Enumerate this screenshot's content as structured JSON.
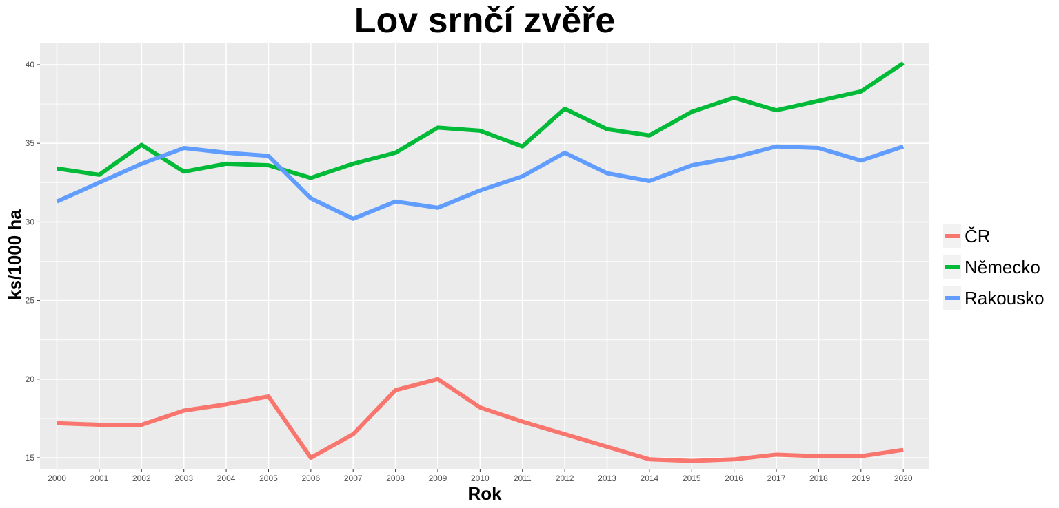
{
  "chart_data": {
    "type": "line",
    "title": "Lov srnčí zvěře",
    "xlabel": "Rok",
    "ylabel": "ks/1000 ha",
    "x": [
      2000,
      2001,
      2002,
      2003,
      2004,
      2005,
      2006,
      2007,
      2008,
      2009,
      2010,
      2011,
      2012,
      2013,
      2014,
      2015,
      2016,
      2017,
      2018,
      2019,
      2020
    ],
    "x_tick_labels": [
      "2000",
      "2001",
      "2002",
      "2003",
      "2004",
      "2005",
      "2006",
      "2007",
      "2008",
      "2009",
      "2010",
      "2011",
      "2012",
      "2013",
      "2014",
      "2015",
      "2016",
      "2017",
      "2018",
      "2019",
      "2020"
    ],
    "xlim": [
      1999.6,
      2020.6
    ],
    "y_ticks": [
      15,
      20,
      25,
      30,
      35,
      40
    ],
    "y_tick_labels": [
      "15",
      "20",
      "25",
      "30",
      "35",
      "40"
    ],
    "ylim": [
      14.3,
      41.4
    ],
    "grid": true,
    "legend_position": "right",
    "series": [
      {
        "name": "ČR",
        "color": "#F8766D",
        "values": [
          17.2,
          17.1,
          17.1,
          18.0,
          18.4,
          18.9,
          15.0,
          16.5,
          19.3,
          20.0,
          18.2,
          17.3,
          16.5,
          15.7,
          14.9,
          14.8,
          14.9,
          15.2,
          15.1,
          15.1,
          15.5
        ]
      },
      {
        "name": "Německo",
        "color": "#00BA38",
        "values": [
          33.4,
          33.0,
          34.9,
          33.2,
          33.7,
          33.6,
          32.8,
          33.7,
          34.4,
          36.0,
          35.8,
          34.8,
          37.2,
          35.9,
          35.5,
          37.0,
          37.9,
          37.1,
          37.7,
          38.3,
          40.1
        ]
      },
      {
        "name": "Rakousko",
        "color": "#619CFF",
        "values": [
          31.3,
          32.5,
          33.7,
          34.7,
          34.4,
          34.2,
          31.5,
          30.2,
          31.3,
          30.9,
          32.0,
          32.9,
          34.4,
          33.1,
          32.6,
          33.6,
          34.1,
          34.8,
          34.7,
          33.9,
          34.8
        ]
      }
    ]
  }
}
